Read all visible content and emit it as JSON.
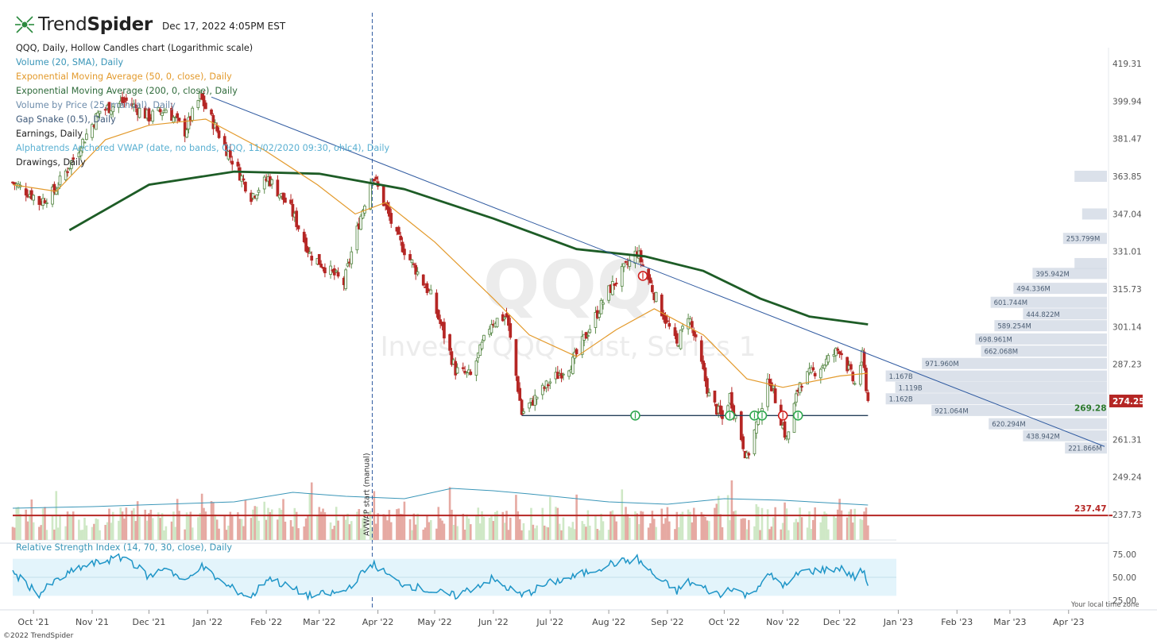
{
  "header": {
    "brand_light": "Trend",
    "brand_bold": "Spider",
    "timestamp": "Dec 17, 2022 4:05PM EST"
  },
  "legend": [
    {
      "text": "QQQ, Daily, Hollow Candles chart (Logarithmic scale)",
      "color": "#222222"
    },
    {
      "text": "Volume (20, SMA), Daily",
      "color": "#3a96b8"
    },
    {
      "text": "Exponential Moving Average (50, 0, close), Daily",
      "color": "#e39a2c"
    },
    {
      "text": "Exponential Moving Average (200, 0, close), Daily",
      "color": "#2f6b3b"
    },
    {
      "text": "Volume by Price (25, manual), Daily",
      "color": "#6d8cab"
    },
    {
      "text": "Gap Snake (0.5), Daily",
      "color": "#3f5a7a"
    },
    {
      "text": "Earnings, Daily",
      "color": "#222222"
    },
    {
      "text": "Alphatrends Anchored VWAP (date, no bands, QQQ, 11/02/2020 09:30, ohlc4), Daily",
      "color": "#5ab0d2"
    },
    {
      "text": "Drawings, Daily",
      "color": "#222222"
    }
  ],
  "rsi_label": "Relative Strength Index (14, 70, 30, close), Daily",
  "footer": {
    "copyright": "©2022 TrendSpider",
    "local_time": "Your local time zone"
  },
  "chart_data": {
    "type": "candlestick",
    "ticker": "QQQ",
    "watermark_ticker": "QQQ",
    "watermark_name": "Invesco QQQ Trust, Series 1",
    "scale": "log",
    "ylim": [
      245,
      425
    ],
    "y_ticks": [
      419.31,
      399.94,
      381.47,
      363.85,
      347.04,
      331.01,
      315.73,
      301.14,
      287.23,
      274.25,
      261.31,
      249.24,
      237.73
    ],
    "x_ticks": [
      "Oct '21",
      "Nov '21",
      "Dec '21",
      "Jan '22",
      "Feb '22",
      "Mar '22",
      "Apr '22",
      "May '22",
      "Jun '22",
      "Jul '22",
      "Aug '22",
      "Sep '22",
      "Oct '22",
      "Nov '22",
      "Dec '22",
      "Jan '23",
      "Feb '23",
      "Mar '23",
      "Apr '23"
    ],
    "x_range": [
      "2021-09-20",
      "2023-04-20"
    ],
    "last_price": 274.25,
    "price_path": [
      [
        "2021-09-20",
        361
      ],
      [
        "2021-10-01",
        355
      ],
      [
        "2021-10-04",
        352
      ],
      [
        "2021-10-12",
        357
      ],
      [
        "2021-10-22",
        372
      ],
      [
        "2021-11-05",
        395
      ],
      [
        "2021-11-19",
        400
      ],
      [
        "2021-12-01",
        392
      ],
      [
        "2021-12-10",
        396
      ],
      [
        "2021-12-20",
        385
      ],
      [
        "2021-12-28",
        402
      ],
      [
        "2022-01-10",
        378
      ],
      [
        "2022-01-24",
        355
      ],
      [
        "2022-02-02",
        363
      ],
      [
        "2022-02-14",
        349
      ],
      [
        "2022-02-24",
        330
      ],
      [
        "2022-03-14",
        318
      ],
      [
        "2022-03-29",
        365
      ],
      [
        "2022-04-11",
        337
      ],
      [
        "2022-04-29",
        313
      ],
      [
        "2022-05-12",
        285
      ],
      [
        "2022-05-20",
        283
      ],
      [
        "2022-05-31",
        303
      ],
      [
        "2022-06-08",
        305
      ],
      [
        "2022-06-16",
        270
      ],
      [
        "2022-07-01",
        281
      ],
      [
        "2022-07-13",
        288
      ],
      [
        "2022-08-01",
        315
      ],
      [
        "2022-08-16",
        331
      ],
      [
        "2022-08-26",
        312
      ],
      [
        "2022-09-06",
        294
      ],
      [
        "2022-09-12",
        306
      ],
      [
        "2022-09-23",
        276
      ],
      [
        "2022-09-30",
        268
      ],
      [
        "2022-10-04",
        276
      ],
      [
        "2022-10-13",
        255
      ],
      [
        "2022-10-25",
        282
      ],
      [
        "2022-11-03",
        261
      ],
      [
        "2022-11-10",
        281
      ],
      [
        "2022-11-22",
        287
      ],
      [
        "2022-12-01",
        293
      ],
      [
        "2022-12-09",
        280
      ],
      [
        "2022-12-13",
        290
      ],
      [
        "2022-12-16",
        274.25
      ]
    ],
    "ema50": [
      [
        "2021-09-20",
        360
      ],
      [
        "2021-10-13",
        357
      ],
      [
        "2021-11-08",
        381
      ],
      [
        "2021-12-01",
        388
      ],
      [
        "2021-12-31",
        391
      ],
      [
        "2022-01-31",
        376
      ],
      [
        "2022-02-28",
        360
      ],
      [
        "2022-03-20",
        347
      ],
      [
        "2022-04-05",
        352
      ],
      [
        "2022-05-01",
        335
      ],
      [
        "2022-06-01",
        312
      ],
      [
        "2022-06-20",
        298
      ],
      [
        "2022-07-15",
        290
      ],
      [
        "2022-08-05",
        300
      ],
      [
        "2022-08-25",
        308
      ],
      [
        "2022-09-20",
        298
      ],
      [
        "2022-10-13",
        282
      ],
      [
        "2022-11-01",
        279
      ],
      [
        "2022-12-01",
        283
      ],
      [
        "2022-12-16",
        284
      ]
    ],
    "ema200": [
      [
        "2021-10-20",
        340
      ],
      [
        "2021-12-01",
        360
      ],
      [
        "2022-01-15",
        366
      ],
      [
        "2022-03-01",
        365
      ],
      [
        "2022-04-15",
        358
      ],
      [
        "2022-06-01",
        345
      ],
      [
        "2022-07-15",
        332
      ],
      [
        "2022-08-20",
        329
      ],
      [
        "2022-09-20",
        323
      ],
      [
        "2022-10-20",
        312
      ],
      [
        "2022-11-15",
        305
      ],
      [
        "2022-12-16",
        302
      ]
    ],
    "trendline": {
      "from": [
        "2022-01-03",
        402
      ],
      "to": [
        "2023-04-20",
        259
      ]
    },
    "horizontal_line": {
      "from": [
        "2022-06-16",
        269.28
      ],
      "to": [
        "2022-12-16",
        269.28
      ],
      "label": "269.28"
    },
    "red_line": {
      "value": 237.47,
      "label": "237.47"
    },
    "vwap_anchor_label": "AVWAP start (manual)",
    "vwap_anchor_date": "2022-03-29",
    "volume_by_price": [
      {
        "price": 363.85,
        "volume": "",
        "ratio": 0.17
      },
      {
        "price": 347.0,
        "volume": "",
        "ratio": 0.13
      },
      {
        "price": 336.5,
        "volume": "253.799M",
        "ratio": 0.23
      },
      {
        "price": 326.0,
        "volume": "",
        "ratio": 0.17
      },
      {
        "price": 322.0,
        "volume": "395.942M",
        "ratio": 0.39
      },
      {
        "price": 316.0,
        "volume": "494.336M",
        "ratio": 0.49
      },
      {
        "price": 310.5,
        "volume": "601.744M",
        "ratio": 0.61
      },
      {
        "price": 306.0,
        "volume": "444.822M",
        "ratio": 0.44
      },
      {
        "price": 301.5,
        "volume": "589.254M",
        "ratio": 0.59
      },
      {
        "price": 296.5,
        "volume": "698.961M",
        "ratio": 0.69
      },
      {
        "price": 292.0,
        "volume": "662.068M",
        "ratio": 0.66
      },
      {
        "price": 287.5,
        "volume": "971.960M",
        "ratio": 0.97
      },
      {
        "price": 283.0,
        "volume": "1.167B",
        "ratio": 1.16
      },
      {
        "price": 279.0,
        "volume": "1.119B",
        "ratio": 1.11
      },
      {
        "price": 275.0,
        "volume": "1.162B",
        "ratio": 1.16
      },
      {
        "price": 271.0,
        "volume": "921.064M",
        "ratio": 0.92
      },
      {
        "price": 266.5,
        "volume": "620.294M",
        "ratio": 0.62
      },
      {
        "price": 262.5,
        "volume": "438.942M",
        "ratio": 0.44
      },
      {
        "price": 258.5,
        "volume": "221.866M",
        "ratio": 0.22
      }
    ],
    "earnings_markers": [
      {
        "date": "2022-08-15",
        "type": "beat"
      },
      {
        "date": "2022-08-19",
        "type": "miss"
      },
      {
        "date": "2022-10-04",
        "type": "beat"
      },
      {
        "date": "2022-10-17",
        "type": "beat"
      },
      {
        "date": "2022-10-21",
        "type": "beat"
      },
      {
        "date": "2022-11-01",
        "type": "miss"
      },
      {
        "date": "2022-11-09",
        "type": "beat"
      }
    ],
    "rsi": {
      "ticks": [
        75.0,
        50.0,
        25.0
      ],
      "upper": 70,
      "lower": 30,
      "path": [
        [
          "2021-09-20",
          55
        ],
        [
          "2021-10-04",
          32
        ],
        [
          "2021-10-12",
          45
        ],
        [
          "2021-10-25",
          60
        ],
        [
          "2021-11-08",
          68
        ],
        [
          "2021-11-19",
          72
        ],
        [
          "2021-12-01",
          50
        ],
        [
          "2021-12-10",
          62
        ],
        [
          "2021-12-20",
          44
        ],
        [
          "2021-12-28",
          63
        ],
        [
          "2022-01-10",
          42
        ],
        [
          "2022-01-24",
          28
        ],
        [
          "2022-02-02",
          50
        ],
        [
          "2022-02-14",
          38
        ],
        [
          "2022-02-24",
          30
        ],
        [
          "2022-03-14",
          34
        ],
        [
          "2022-03-29",
          65
        ],
        [
          "2022-04-11",
          45
        ],
        [
          "2022-04-29",
          35
        ],
        [
          "2022-05-12",
          30
        ],
        [
          "2022-05-31",
          48
        ],
        [
          "2022-06-16",
          30
        ],
        [
          "2022-07-01",
          44
        ],
        [
          "2022-07-13",
          50
        ],
        [
          "2022-08-01",
          64
        ],
        [
          "2022-08-16",
          70
        ],
        [
          "2022-08-26",
          50
        ],
        [
          "2022-09-06",
          35
        ],
        [
          "2022-09-12",
          45
        ],
        [
          "2022-09-30",
          30
        ],
        [
          "2022-10-04",
          40
        ],
        [
          "2022-10-13",
          30
        ],
        [
          "2022-10-25",
          52
        ],
        [
          "2022-11-03",
          40
        ],
        [
          "2022-11-10",
          56
        ],
        [
          "2022-11-22",
          58
        ],
        [
          "2022-12-01",
          60
        ],
        [
          "2022-12-09",
          50
        ],
        [
          "2022-12-13",
          58
        ],
        [
          "2022-12-16",
          42
        ]
      ]
    },
    "volume_sma": [
      [
        "2021-09-20",
        40
      ],
      [
        "2021-11-01",
        42
      ],
      [
        "2022-01-15",
        48
      ],
      [
        "2022-02-15",
        60
      ],
      [
        "2022-03-15",
        55
      ],
      [
        "2022-04-15",
        52
      ],
      [
        "2022-05-10",
        65
      ],
      [
        "2022-06-01",
        62
      ],
      [
        "2022-06-20",
        58
      ],
      [
        "2022-08-01",
        48
      ],
      [
        "2022-09-01",
        45
      ],
      [
        "2022-10-01",
        52
      ],
      [
        "2022-11-01",
        50
      ],
      [
        "2022-12-16",
        44
      ]
    ],
    "colors": {
      "up": "#5d8c4c",
      "down": "#b52624",
      "ema50": "#e39a2c",
      "ema200": "#1d5c26",
      "trendline": "#2f5aa0",
      "support": "#253f5a",
      "red_line": "#b52624",
      "vbp": "#d5dce6",
      "rsi": "#1e95c7",
      "rsi_band": "#e3f4fb",
      "vol_up": "#cfe8c6",
      "vol_down": "#e6a9a2"
    }
  }
}
